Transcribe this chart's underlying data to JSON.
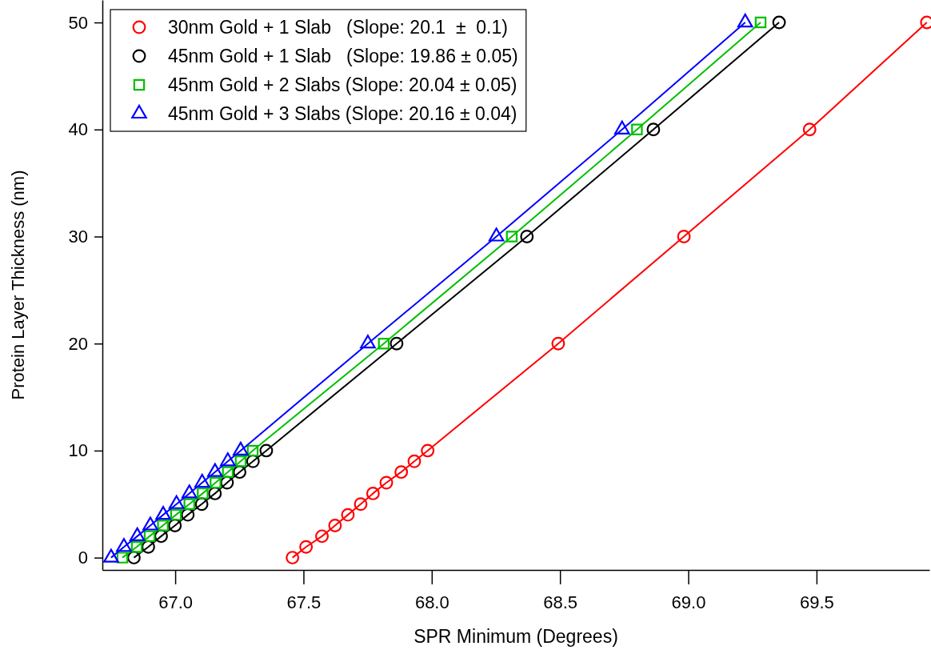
{
  "chart_data": {
    "type": "line",
    "xlabel": "SPR Minimum (Degrees)",
    "ylabel": "Protein Layer Thickness (nm)",
    "xlim": [
      66.716,
      69.94
    ],
    "xticks": [
      {
        "value": 67,
        "label": "67.0"
      },
      {
        "value": 67.5,
        "label": "67.5"
      },
      {
        "value": 68,
        "label": "68.0"
      },
      {
        "value": 68.5,
        "label": "68.5"
      },
      {
        "value": 69,
        "label": "69.0"
      },
      {
        "value": 69.5,
        "label": "69.5"
      }
    ],
    "ylim": [
      -1.15,
      52.1
    ],
    "yticks": [
      0,
      10,
      20,
      30,
      40,
      50
    ],
    "grid": false,
    "legend": "top left",
    "line_style": "solid",
    "series": [
      {
        "name": "30nm Gold + 1 Slab   (Slope: 20.1  ±  0.1)",
        "color": "#ff0000",
        "marker": "circle",
        "x": [
          67.457,
          67.51,
          67.572,
          67.623,
          67.673,
          67.723,
          67.771,
          67.823,
          67.881,
          67.932,
          67.984,
          68.493,
          68.983,
          69.473,
          69.93
        ],
        "values": [
          0,
          1,
          2,
          3,
          4,
          5,
          6,
          7,
          8,
          9,
          10,
          20,
          30,
          40,
          50
        ]
      },
      {
        "name": "45nm Gold + 1 Slab   (Slope: 19.86 ± 0.05)",
        "color": "#000000",
        "marker": "circle",
        "x": [
          66.839,
          66.895,
          66.945,
          66.999,
          67.049,
          67.103,
          67.155,
          67.202,
          67.251,
          67.303,
          67.355,
          67.863,
          68.371,
          68.864,
          69.354
        ],
        "values": [
          0,
          1,
          2,
          3,
          4,
          5,
          6,
          7,
          8,
          9,
          10,
          20,
          30,
          40,
          50
        ]
      },
      {
        "name": "45nm Gold + 2 Slabs (Slope: 20.04 ± 0.05)",
        "color": "#00c000",
        "marker": "square",
        "x": [
          66.794,
          66.85,
          66.9,
          66.952,
          67.003,
          67.055,
          67.107,
          67.157,
          67.205,
          67.255,
          67.302,
          67.813,
          68.312,
          68.8,
          69.282
        ],
        "values": [
          0,
          1,
          2,
          3,
          4,
          5,
          6,
          7,
          8,
          9,
          10,
          20,
          30,
          40,
          50
        ]
      },
      {
        "name": "45nm Gold + 3 Slabs (Slope: 20.16 ± 0.04)",
        "color": "#0000ff",
        "marker": "triangle",
        "x": [
          66.75,
          66.8,
          66.852,
          66.903,
          66.953,
          67.005,
          67.055,
          67.105,
          67.155,
          67.205,
          67.255,
          67.751,
          68.252,
          68.742,
          69.222
        ],
        "values": [
          0,
          1,
          2,
          3,
          4,
          5,
          6,
          7,
          8,
          9,
          10,
          20,
          30,
          40,
          50
        ]
      }
    ]
  }
}
